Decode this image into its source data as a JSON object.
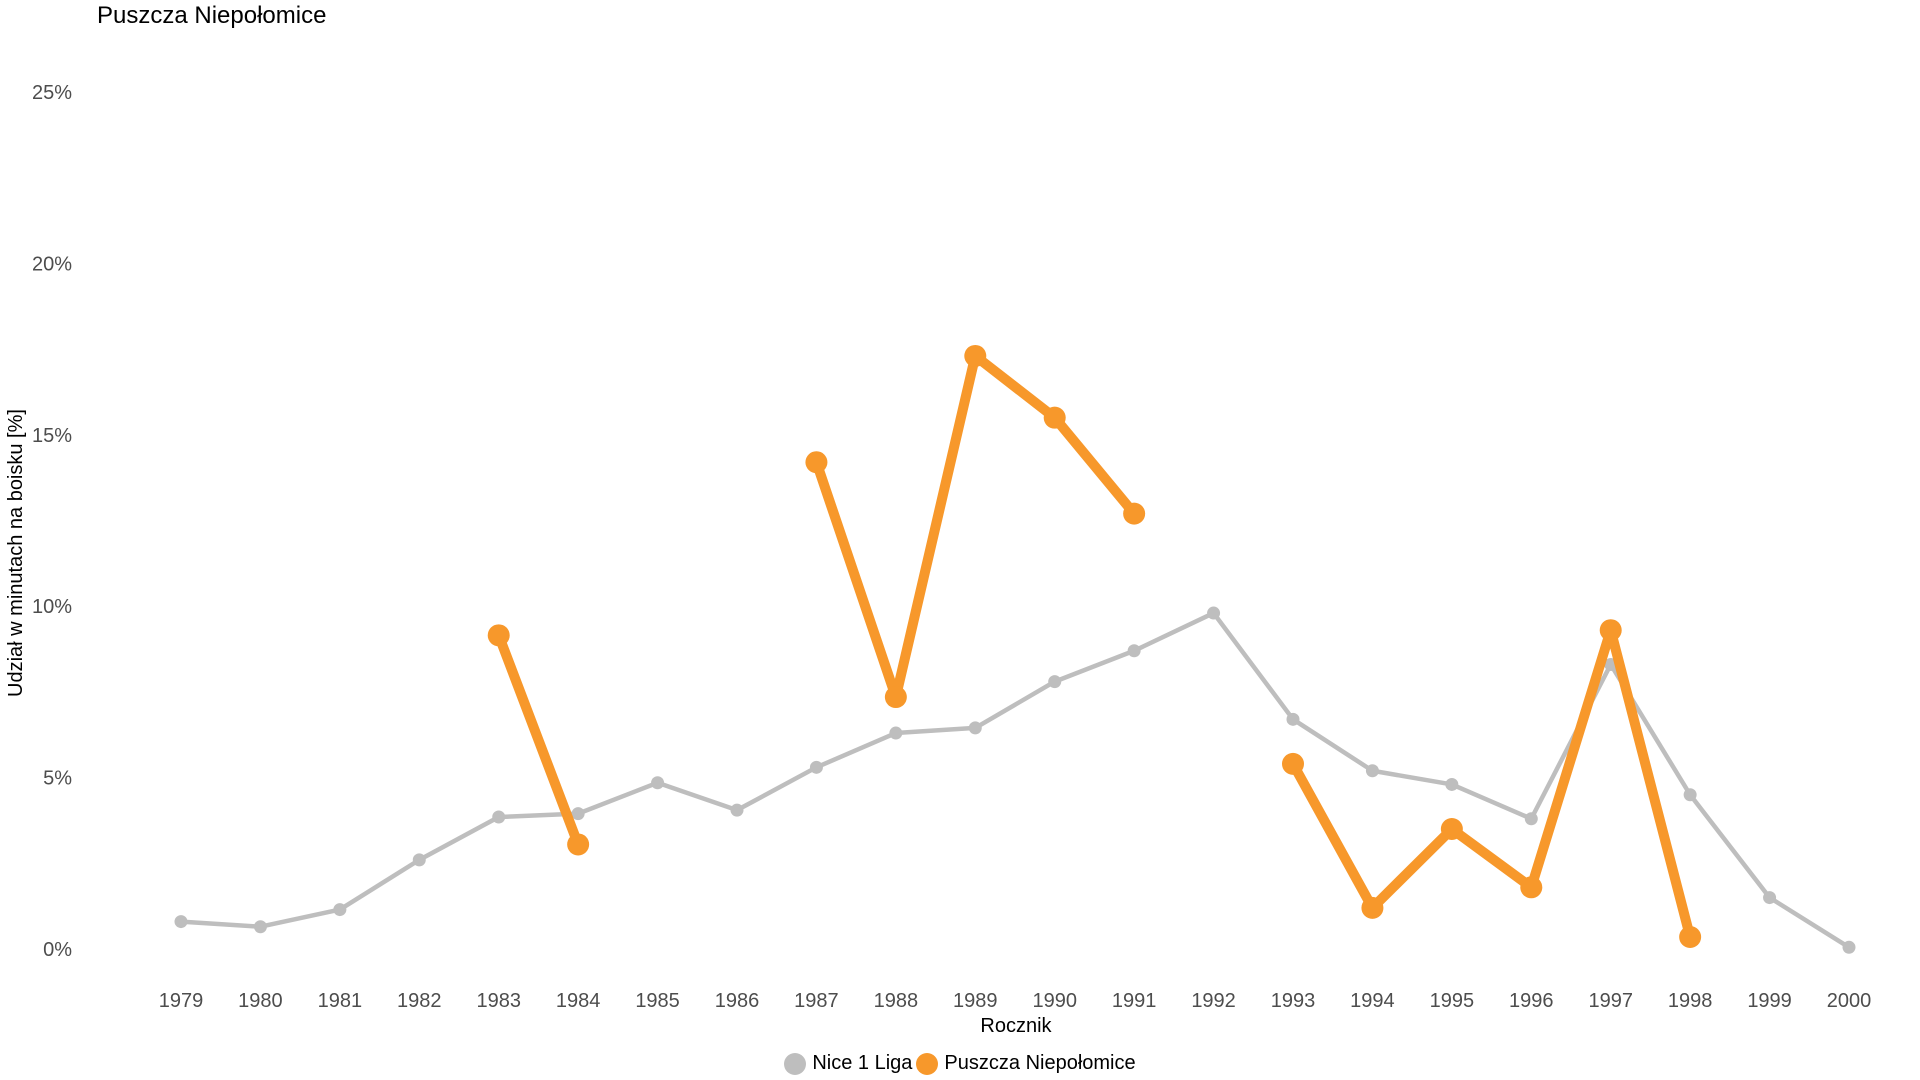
{
  "chart_data": {
    "type": "line",
    "title": "Puszcza Niepołomice",
    "xlabel": "Rocznik",
    "ylabel": "Udział w minutach na boisku [%]",
    "x": [
      1979,
      1980,
      1981,
      1982,
      1983,
      1984,
      1985,
      1986,
      1987,
      1988,
      1989,
      1990,
      1991,
      1992,
      1993,
      1994,
      1995,
      1996,
      1997,
      1998,
      1999,
      2000
    ],
    "ylim": [
      0,
      25
    ],
    "y_ticks": [
      "0%",
      "5%",
      "10%",
      "15%",
      "20%",
      "25%"
    ],
    "grid": false,
    "legend_position": "bottom",
    "series": [
      {
        "name": "Nice 1 Liga",
        "color": "#bebebe",
        "values": [
          0.8,
          0.65,
          1.15,
          2.6,
          3.85,
          3.95,
          4.85,
          4.05,
          5.3,
          6.3,
          6.45,
          7.8,
          8.7,
          9.8,
          6.7,
          5.2,
          4.8,
          3.8,
          8.3,
          4.5,
          1.5,
          0.05
        ]
      },
      {
        "name": "Puszcza Niepołomice",
        "color": "#f7982b",
        "values": [
          null,
          null,
          null,
          null,
          9.15,
          3.05,
          null,
          null,
          14.2,
          7.35,
          17.3,
          15.5,
          12.7,
          null,
          5.4,
          1.2,
          3.5,
          1.8,
          9.3,
          0.35,
          null,
          null
        ]
      }
    ]
  }
}
